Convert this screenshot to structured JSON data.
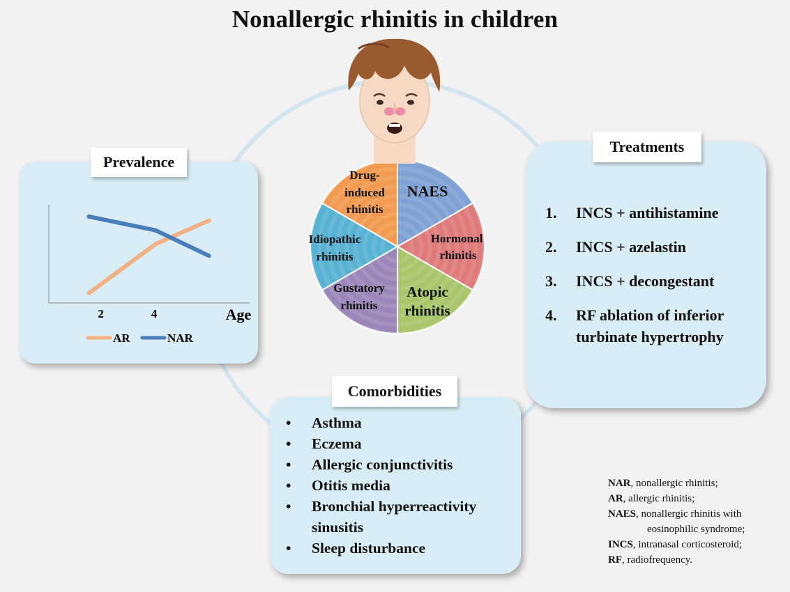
{
  "title": "Nonallergic rhinitis in children",
  "colors": {
    "background": "#f2f2f2",
    "panel": "#d8edf5",
    "ring": "#d3e6ef",
    "ar_line": "#f4b183",
    "nar_line": "#4a7ebb"
  },
  "prevalence": {
    "label": "Prevalence",
    "x_ticks": [
      "2",
      "4"
    ],
    "x_axis_label": "Age",
    "legend": [
      "AR",
      "NAR"
    ],
    "chart_data": {
      "type": "line",
      "x": [
        1.5,
        4,
        6
      ],
      "x_ticks": [
        "2",
        "4"
      ],
      "xlabel": "Age",
      "ylabel": "",
      "ylim": [
        0,
        10
      ],
      "series": [
        {
          "name": "AR",
          "values": [
            1,
            6,
            8.4
          ],
          "color": "#f4b183"
        },
        {
          "name": "NAR",
          "values": [
            8.8,
            7.4,
            4.8
          ],
          "color": "#4a7ebb"
        }
      ],
      "legend": "bottom"
    }
  },
  "pie": {
    "segments": [
      {
        "label": "NAES",
        "color": "#7fa1d3"
      },
      {
        "label": "Hormonal rhinitis",
        "color": "#e07b7b"
      },
      {
        "label": "Atopic rhinitis",
        "color": "#a9c66a"
      },
      {
        "label": "Gustatory rhinitis",
        "color": "#9a86b8"
      },
      {
        "label": "Idiopathic rhinitis",
        "color": "#57b2d3"
      },
      {
        "label": "Drug-induced rhinitis",
        "color": "#f29a4f"
      }
    ],
    "texts": {
      "naes": "NAES",
      "hormonal_1": "Hormonal",
      "hormonal_2": "rhinitis",
      "atopic_1": "Atopic",
      "atopic_2": "rhinitis",
      "gustatory_1": "Gustatory",
      "gustatory_2": "rhinitis",
      "idiopathic_1": "Idiopathic",
      "idiopathic_2": "rhinitis",
      "drug_1": "Drug-",
      "drug_2": "induced",
      "drug_3": "rhinitis"
    }
  },
  "treatments": {
    "label": "Treatments",
    "items": [
      {
        "num": "1.",
        "text": "INCS + antihistamine"
      },
      {
        "num": "2.",
        "text": "INCS + azelastin"
      },
      {
        "num": "3.",
        "text": "INCS + decongestant"
      },
      {
        "num": "4.",
        "text": "RF ablation of inferior turbinate hypertrophy"
      }
    ]
  },
  "comorbidities": {
    "label": "Comorbidities",
    "bullet": "•",
    "items": [
      "Asthma",
      "Eczema",
      "Allergic conjunctivitis",
      "Otitis media",
      "Bronchial hyperreactivity sinusitis",
      "Sleep disturbance"
    ]
  },
  "abbreviations": [
    {
      "abbr": "NAR",
      "text": ", nonallergic rhinitis;"
    },
    {
      "abbr": "AR",
      "text": ", allergic rhinitis;"
    },
    {
      "abbr": "NAES",
      "text": ", nonallergic rhinitis with"
    },
    {
      "abbr": "",
      "text": "eosinophilic syndrome;"
    },
    {
      "abbr": "INCS",
      "text": ", intranasal corticosteroid;"
    },
    {
      "abbr": "RF",
      "text": ", radiofrequency."
    }
  ]
}
